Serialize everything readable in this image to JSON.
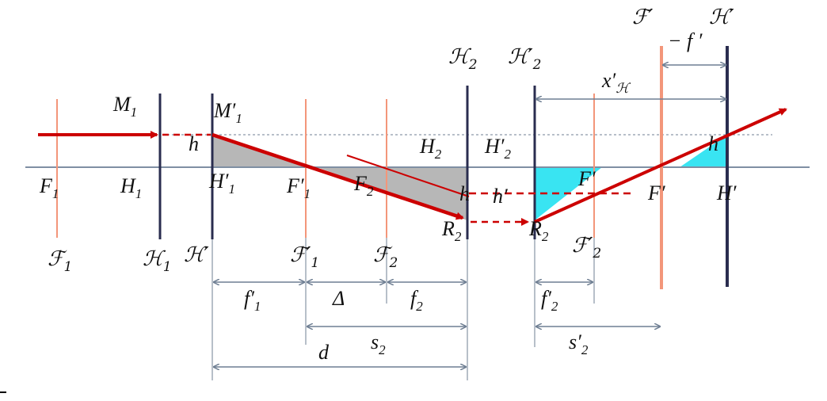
{
  "colors": {
    "ray": "#cc0000",
    "optic_axis": "#7f8fa3",
    "principal_plane": "#2a2d4f",
    "focal_plane": "#f3967a",
    "dotted_line": "#6f7f93",
    "dimension_line": "#6f7f93",
    "gray_fill": "#b7b7b7",
    "cyan_fill": "#39e4f2"
  },
  "labels": {
    "M1": {
      "main": "M",
      "sub": "1"
    },
    "M1p": {
      "main": "M′",
      "sub": "1"
    },
    "h": "h",
    "F1": {
      "main": "F",
      "sub": "1"
    },
    "H1": {
      "main": "H",
      "sub": "1"
    },
    "H1p": {
      "main": "H′",
      "sub": "1"
    },
    "F1p": {
      "main": "F′",
      "sub": "1"
    },
    "F2": {
      "main": "F",
      "sub": "2"
    },
    "H2": {
      "main": "H",
      "sub": "2"
    },
    "H2p": {
      "main": "H′",
      "sub": "2"
    },
    "hsub": "h",
    "hprime": "h′",
    "R2": {
      "main": "R",
      "sub": "2"
    },
    "R2p": {
      "main": "R",
      "sub": "2"
    },
    "Fp_mid": "F′",
    "Fp_axis": "F′",
    "Hp_axis": "H′",
    "h_right": "h",
    "sF1": {
      "main": "ℱ",
      "sub": "1"
    },
    "sH1": {
      "main": "ℋ",
      "sub": "1"
    },
    "sH1p": "ℋ′",
    "sF1p": {
      "main": "ℱ′",
      "sub": "1"
    },
    "sF2": {
      "main": "ℱ",
      "sub": "2"
    },
    "sH2": {
      "main": "ℋ",
      "sub": "2"
    },
    "sH2p": {
      "main": "ℋ′",
      "sub": "2"
    },
    "sF2p": {
      "main": "ℱ′",
      "sub": "2"
    },
    "sFp": "ℱ′",
    "sHp": "ℋ′",
    "minus_fp": "− f ′",
    "xpH": {
      "main": "x′",
      "sub": "ℋ"
    },
    "f1p": {
      "main": "f′",
      "sub": "1"
    },
    "delta": "Δ",
    "f2": {
      "main": "f",
      "sub": "2"
    },
    "f2p": {
      "main": "f′",
      "sub": "2"
    },
    "s2": {
      "main": "s",
      "sub": "2"
    },
    "s2p": {
      "main": "s′",
      "sub": "2"
    },
    "d": "d"
  }
}
